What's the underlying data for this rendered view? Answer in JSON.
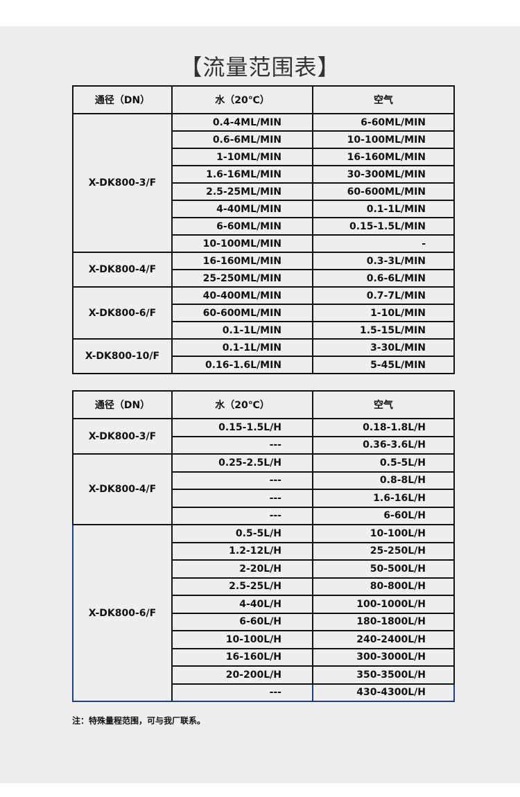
{
  "title": "【流量范围表】",
  "headers": {
    "dn": "通径（DN）",
    "water": "水（20℃）",
    "air": "空气"
  },
  "table1": [
    {
      "model": "X-DK800-3/F",
      "rows": [
        [
          "0.4-4ML/MIN",
          "6-60ML/MIN"
        ],
        [
          "0.6-6ML/MIN",
          "10-100ML/MIN"
        ],
        [
          "1-10ML/MIN",
          "16-160ML/MIN"
        ],
        [
          "1.6-16ML/MIN",
          "30-300ML/MIN"
        ],
        [
          "2.5-25ML/MIN",
          "60-600ML/MIN"
        ],
        [
          "4-40ML/MIN",
          "0.1-1L/MIN"
        ],
        [
          "6-60ML/MIN",
          "0.15-1.5L/MIN"
        ],
        [
          "10-100ML/MIN",
          "-"
        ]
      ]
    },
    {
      "model": "X-DK800-4/F",
      "rows": [
        [
          "16-160ML/MIN",
          "0.3-3L/MIN"
        ],
        [
          "25-250ML/MIN",
          "0.6-6L/MIN"
        ]
      ]
    },
    {
      "model": "X-DK800-6/F",
      "rows": [
        [
          "40-400ML/MIN",
          "0.7-7L/MIN"
        ],
        [
          "60-600ML/MIN",
          "1-10L/MIN"
        ],
        [
          "0.1-1L/MIN",
          "1.5-15L/MIN"
        ]
      ]
    },
    {
      "model": "X-DK800-10/F",
      "rows": [
        [
          "0.1-1L/MIN",
          "3-30L/MIN"
        ],
        [
          "0.16-1.6L/MIN",
          "5-45L/MIN"
        ]
      ]
    }
  ],
  "table2": [
    {
      "model": "X-DK800-3/F",
      "rows": [
        [
          "0.15-1.5L/H",
          "0.18-1.8L/H"
        ],
        [
          "---",
          "0.36-3.6L/H"
        ]
      ]
    },
    {
      "model": "X-DK800-4/F",
      "rows": [
        [
          "0.25-2.5L/H",
          "0.5-5L/H"
        ],
        [
          "---",
          "0.8-8L/H"
        ],
        [
          "---",
          "1.6-16L/H"
        ],
        [
          "---",
          "6-60L/H"
        ]
      ]
    },
    {
      "model": "X-DK800-6/F",
      "rows": [
        [
          "0.5-5L/H",
          "10-100L/H"
        ],
        [
          "1.2-12L/H",
          "25-250L/H"
        ],
        [
          "2-20L/H",
          "50-500L/H"
        ],
        [
          "2.5-25L/H",
          "80-800L/H"
        ],
        [
          "4-40L/H",
          "100-1000L/H"
        ],
        [
          "6-60L/H",
          "180-1800L/H"
        ],
        [
          "10-100L/H",
          "240-2400L/H"
        ],
        [
          "16-160L/H",
          "300-3000L/H"
        ],
        [
          "20-200L/H",
          "350-3500L/H"
        ],
        [
          "---",
          "430-4300L/H"
        ]
      ]
    }
  ],
  "note": "注：特殊量程范围，可与我厂联系。"
}
